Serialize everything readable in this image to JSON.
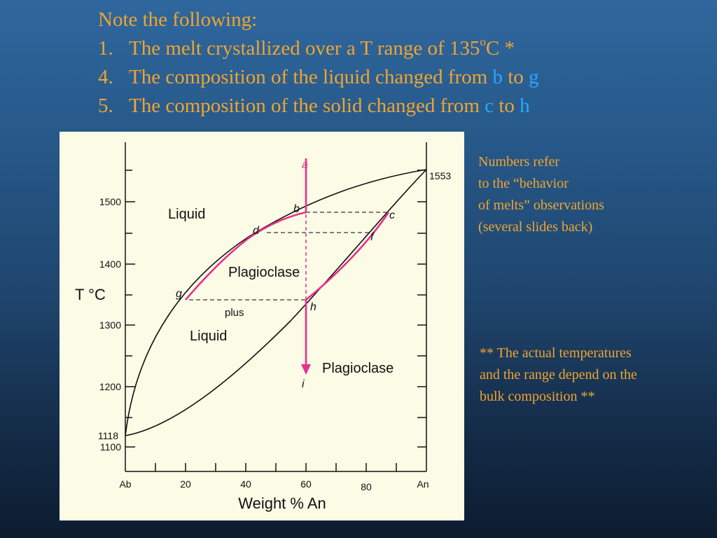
{
  "heading": {
    "intro": "Note the following:",
    "items": [
      {
        "number": "1.",
        "pre": "The melt crystallized over a T range of 135",
        "deg": "o",
        "post": "C *"
      },
      {
        "number": "4.",
        "pre": "The composition of the liquid changed from ",
        "from": "b",
        "mid": " to ",
        "to": "g"
      },
      {
        "number": "5.",
        "pre": "The composition of the solid changed from ",
        "from": "c",
        "mid": " to ",
        "to": "h"
      }
    ]
  },
  "side_notes": {
    "note1": [
      "Numbers refer",
      "to the “behavior",
      "of melts” observations",
      "(several slides back)"
    ],
    "note2": [
      "** The actual temperatures",
      "and the range depend on the",
      "bulk composition **"
    ]
  },
  "colors": {
    "accent": "#f0a530",
    "highlight": "#2aa6ff",
    "path": "#e8308a",
    "diagram_bg": "#fbfbe6"
  },
  "diagram": {
    "axis_y_label": "T °C",
    "axis_x_label": "Weight % An",
    "y_ticks": [
      "1500",
      "1400",
      "1300",
      "1200",
      "1100"
    ],
    "end_left": "1118",
    "end_right": "1553",
    "x_ticks": [
      "Ab",
      "20",
      "40",
      "60",
      "80",
      "An"
    ],
    "regions": {
      "liquid_top": "Liquid",
      "plag": "Plagioclase",
      "plus": "plus",
      "liquid_mid": "Liquid",
      "plag_bottom": "Plagioclase"
    },
    "points": {
      "a": "a",
      "b": "b",
      "c": "c",
      "d": "d",
      "f": "f",
      "g": "g",
      "h": "h",
      "i": "i"
    }
  }
}
